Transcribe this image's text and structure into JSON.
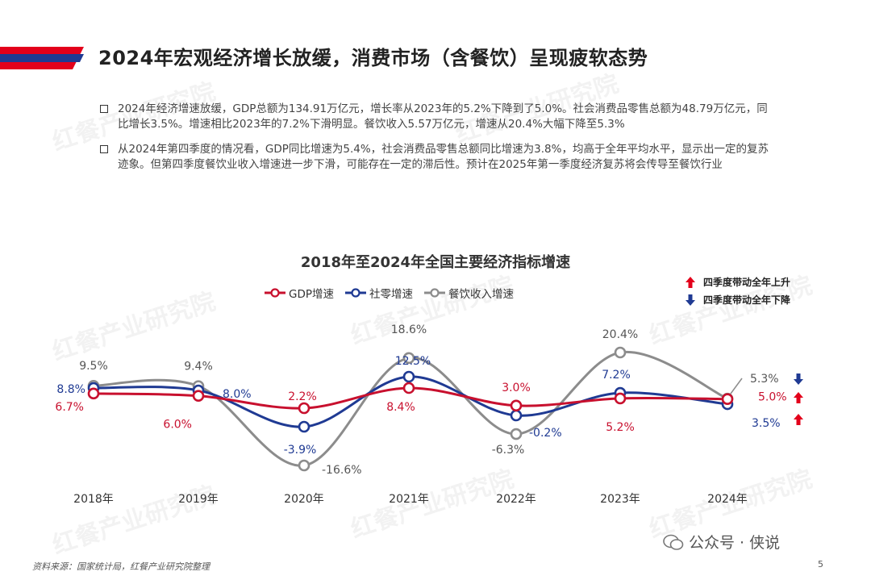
{
  "header": {
    "title": "2024年宏观经济增长放缓，消费市场（含餐饮）呈现疲软态势"
  },
  "bullets": [
    "2024年经济增速放缓，GDP总额为134.91万亿元，增长率从2023年的5.2%下降到了5.0%。社会消费品零售总额为48.79万亿元，同比增长3.5%。增速相比2023年的7.2%下滑明显。餐饮收入5.57万亿元，增速从20.4%大幅下降至5.3%",
    "从2024年第四季度的情况看，GDP同比增速为5.4%，社会消费品零售总额同比增速为3.8%，均高于全年平均水平，显示出一定的复苏迹象。但第四季度餐饮业收入增速进一步下滑，可能存在一定的滞后性。预计在2025年第一季度经济复苏将会传导至餐饮行业"
  ],
  "indicators": {
    "up_label": "四季度带动全年上升",
    "down_label": "四季度带动全年下降"
  },
  "chart_data": {
    "type": "line",
    "title": "2018年至2024年全国主要经济指标增速",
    "categories": [
      "2018年",
      "2019年",
      "2020年",
      "2021年",
      "2022年",
      "2023年",
      "2024年"
    ],
    "series": [
      {
        "name": "GDP增速",
        "color": "#c8102e",
        "values": [
          6.7,
          6.0,
          2.2,
          8.4,
          3.0,
          5.2,
          5.0
        ],
        "labels": [
          "6.7%",
          "6.0%",
          "2.2%",
          "8.4%",
          "3.0%",
          "5.2%",
          "5.0%"
        ]
      },
      {
        "name": "社零增速",
        "color": "#1f3a93",
        "values": [
          8.8,
          8.0,
          -3.9,
          12.5,
          -0.2,
          7.2,
          3.5
        ],
        "labels": [
          "8.8%",
          "8.0%",
          "-3.9%",
          "12.5%",
          "-0.2%",
          "7.2%",
          "3.5%"
        ]
      },
      {
        "name": "餐饮收入增速",
        "color": "#8c8c8c",
        "values": [
          9.5,
          9.4,
          -16.6,
          18.6,
          -6.3,
          20.4,
          5.3
        ],
        "labels": [
          "9.5%",
          "9.4%",
          "-16.6%",
          "18.6%",
          "-6.3%",
          "20.4%",
          "5.3%"
        ]
      }
    ],
    "trend_2024": {
      "餐饮收入增速": "down",
      "GDP增速": "up",
      "社零增速": "up"
    },
    "grid": false,
    "legend": "top"
  },
  "footer": {
    "source": "资料来源：国家统计局，红餐产业研究院整理",
    "page_number": "5",
    "wechat": "公众号 · 侠说"
  },
  "watermark": "红餐产业研究院",
  "colors": {
    "accent_red": "#e3001b",
    "accent_blue": "#1f3a93"
  }
}
